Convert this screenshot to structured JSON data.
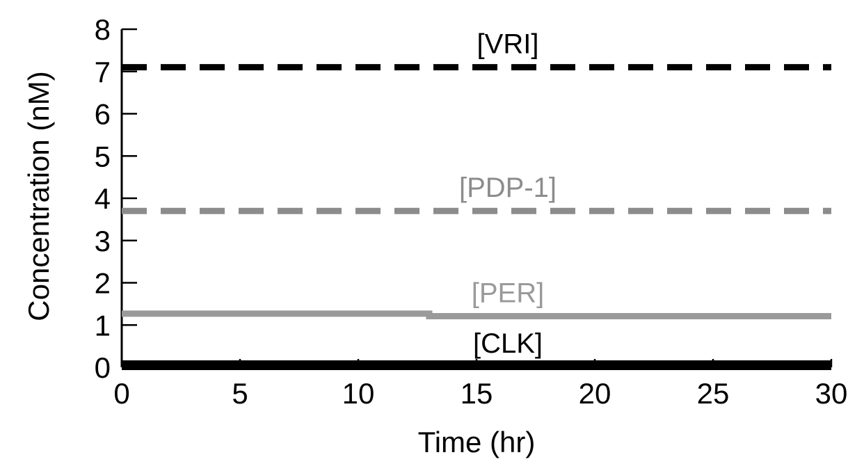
{
  "chart_data": {
    "type": "line",
    "title": "",
    "xlabel": "Time (hr)",
    "ylabel": "Concentration (nM)",
    "xlim": [
      0,
      30
    ],
    "ylim": [
      0,
      8
    ],
    "xticks": [
      0,
      5,
      10,
      15,
      20,
      25,
      30
    ],
    "yticks": [
      0,
      1,
      2,
      3,
      4,
      5,
      6,
      7,
      8
    ],
    "grid": false,
    "legend": "inline",
    "series": [
      {
        "name": "[VRI]",
        "color": "#000000",
        "style": "dashed",
        "x": [
          0,
          30
        ],
        "y": [
          7.1,
          7.1
        ]
      },
      {
        "name": "[PDP-1]",
        "color": "#8c8c8c",
        "style": "dashed",
        "x": [
          0,
          30
        ],
        "y": [
          3.7,
          3.7
        ]
      },
      {
        "name": "[PER]",
        "color": "#9a9a9a",
        "style": "solid",
        "x": [
          0,
          13,
          13,
          30
        ],
        "y": [
          1.27,
          1.27,
          1.21,
          1.21
        ]
      },
      {
        "name": "[CLK]",
        "color": "#000000",
        "style": "solid",
        "x": [
          0,
          30
        ],
        "y": [
          0.05,
          0.05
        ]
      }
    ]
  }
}
